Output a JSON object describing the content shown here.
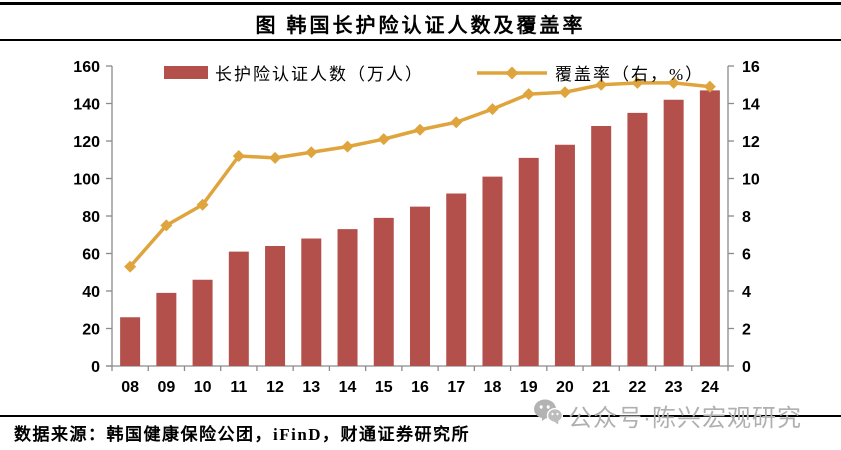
{
  "header": {
    "title": "图  韩国长护险认证人数及覆盖率"
  },
  "chart_data": {
    "type": "bar",
    "title": "图 韩国长护险认证人数及覆盖率",
    "categories": [
      "08",
      "09",
      "10",
      "11",
      "12",
      "13",
      "14",
      "15",
      "16",
      "17",
      "18",
      "19",
      "20",
      "21",
      "22",
      "23",
      "24"
    ],
    "series": [
      {
        "name": "长护险认证人数（万人）",
        "type": "bar",
        "axis": "left",
        "values": [
          26,
          39,
          46,
          61,
          64,
          68,
          73,
          79,
          85,
          92,
          101,
          111,
          118,
          128,
          135,
          142,
          147
        ]
      },
      {
        "name": "覆盖率（右，%）",
        "type": "line",
        "axis": "right",
        "values": [
          5.3,
          7.5,
          8.6,
          11.2,
          11.1,
          11.4,
          11.7,
          12.1,
          12.6,
          13.0,
          13.7,
          14.5,
          14.6,
          15.0,
          15.1,
          15.1,
          14.9
        ]
      }
    ],
    "left_axis": {
      "min": 0,
      "max": 160,
      "step": 20
    },
    "right_axis": {
      "min": 0,
      "max": 16,
      "step": 2
    },
    "grid": false,
    "legend_position": "top",
    "colors": {
      "bar": "#B4504C",
      "line": "#DFA43C",
      "axis": "#8A8A8A",
      "tick_label": "#000000"
    }
  },
  "footer": {
    "source": "数据来源：韩国健康保险公团，iFinD，财通证券研究所"
  },
  "watermark": {
    "text": "公众号·陈兴宏观研究",
    "icon": "wechat-icon"
  }
}
